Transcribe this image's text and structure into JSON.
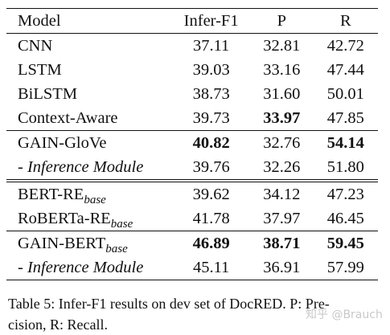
{
  "table": {
    "headers": [
      "Model",
      "Infer-F1",
      "P",
      "R"
    ],
    "rows": [
      {
        "model": "CNN",
        "suffix": "",
        "f1": "37.11",
        "p": "32.81",
        "r": "42.72"
      },
      {
        "model": "LSTM",
        "suffix": "",
        "f1": "39.03",
        "p": "33.16",
        "r": "47.44"
      },
      {
        "model": "BiLSTM",
        "suffix": "",
        "f1": "38.73",
        "p": "31.60",
        "r": "50.01"
      },
      {
        "model": "Context-Aware",
        "suffix": "",
        "f1": "39.73",
        "p": "33.97",
        "r": "47.85"
      },
      {
        "model": "GAIN-GloVe",
        "suffix": "",
        "f1": "40.82",
        "p": "32.76",
        "r": "54.14"
      },
      {
        "model": "- Inference Module",
        "suffix": "",
        "f1": "39.76",
        "p": "32.26",
        "r": "51.80"
      },
      {
        "model": "BERT-RE",
        "suffix": "base",
        "f1": "39.62",
        "p": "34.12",
        "r": "47.23"
      },
      {
        "model": "RoBERTa-RE",
        "suffix": "base",
        "f1": "41.78",
        "p": "37.97",
        "r": "46.45"
      },
      {
        "model": "GAIN-BERT",
        "suffix": "base",
        "f1": "46.89",
        "p": "38.71",
        "r": "59.45"
      },
      {
        "model": "- Inference Module",
        "suffix": "",
        "f1": "45.11",
        "p": "36.91",
        "r": "57.99"
      }
    ]
  },
  "caption": {
    "line1": "Table 5: Infer-F1 results on dev set of DocRED. P: Pre-",
    "line2": "cision, R: Recall."
  },
  "watermark": "知乎 @Brauch"
}
